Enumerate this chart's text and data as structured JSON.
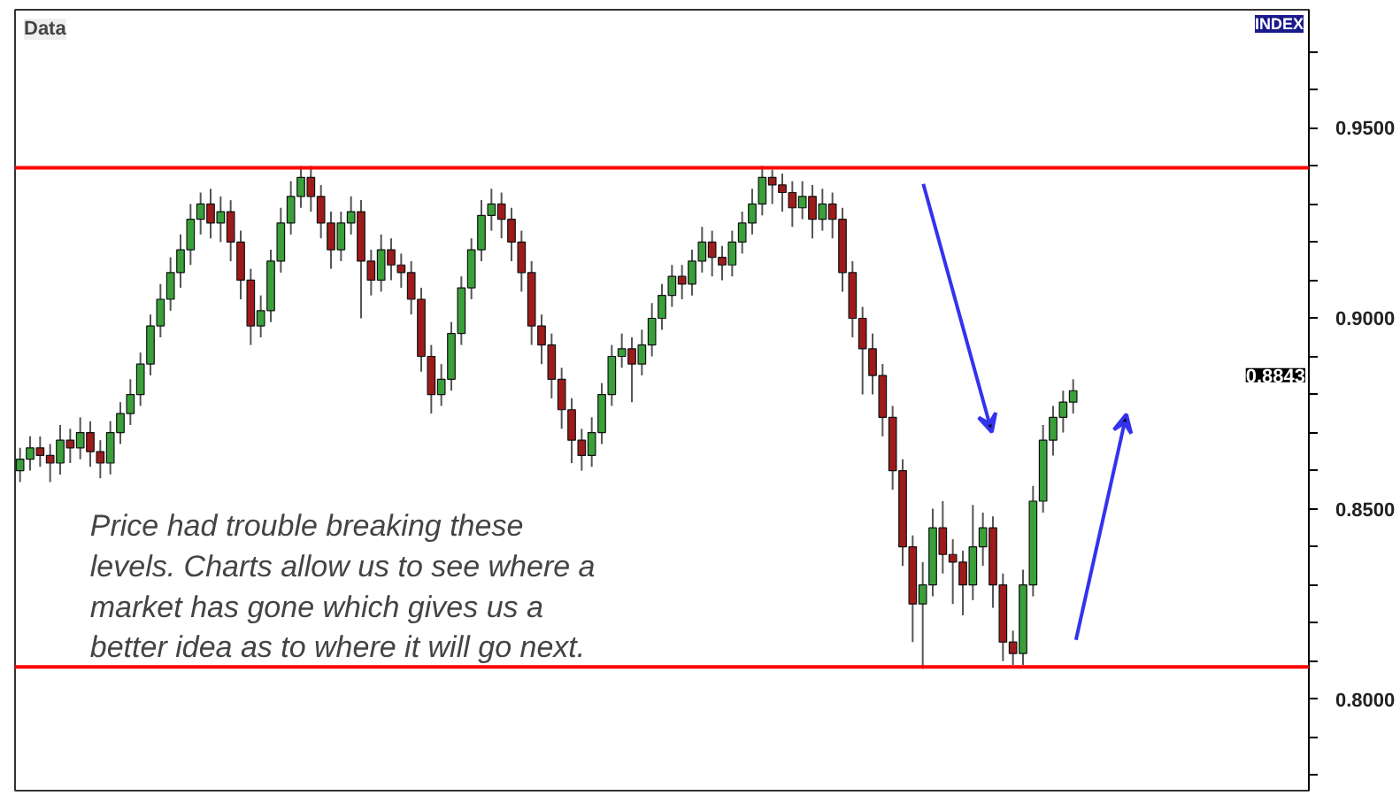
{
  "chart_data": {
    "type": "candlestick",
    "categories": [
      null,
      null,
      null,
      null,
      null,
      null,
      null,
      null,
      null,
      null,
      null,
      null,
      null,
      null,
      null,
      null,
      null,
      null,
      null,
      null,
      null,
      null,
      null,
      null,
      null,
      null,
      null,
      null,
      null,
      null,
      null,
      null,
      null,
      null,
      null,
      null,
      null,
      null,
      null,
      null,
      null,
      null,
      null,
      null,
      null,
      null,
      null,
      null,
      null,
      null,
      null,
      null,
      null,
      null,
      null,
      null,
      null,
      null,
      null,
      null,
      null,
      null,
      null,
      null,
      null,
      null,
      null,
      null,
      null,
      null,
      null,
      null,
      null,
      null,
      null,
      null,
      null,
      null,
      null,
      null,
      null,
      null,
      null,
      null,
      null,
      null,
      null,
      null,
      null,
      null,
      null,
      null,
      null,
      null,
      null,
      null,
      null,
      null,
      null,
      null,
      null,
      null,
      null,
      null,
      null,
      null,
      null,
      null,
      null,
      null,
      null,
      null,
      null,
      null,
      null,
      null,
      null,
      null,
      null,
      null,
      null,
      null,
      null,
      null,
      null,
      null,
      null,
      null,
      null
    ],
    "ohlc": [
      [
        0.86,
        0.866,
        0.857,
        0.863
      ],
      [
        0.863,
        0.869,
        0.86,
        0.866
      ],
      [
        0.866,
        0.869,
        0.861,
        0.864
      ],
      [
        0.864,
        0.867,
        0.857,
        0.862
      ],
      [
        0.862,
        0.872,
        0.859,
        0.868
      ],
      [
        0.868,
        0.871,
        0.862,
        0.866
      ],
      [
        0.866,
        0.874,
        0.863,
        0.87
      ],
      [
        0.87,
        0.873,
        0.861,
        0.865
      ],
      [
        0.865,
        0.868,
        0.858,
        0.862
      ],
      [
        0.862,
        0.873,
        0.859,
        0.87
      ],
      [
        0.87,
        0.878,
        0.867,
        0.875
      ],
      [
        0.875,
        0.884,
        0.872,
        0.88
      ],
      [
        0.88,
        0.891,
        0.877,
        0.888
      ],
      [
        0.888,
        0.901,
        0.885,
        0.898
      ],
      [
        0.898,
        0.909,
        0.895,
        0.905
      ],
      [
        0.905,
        0.916,
        0.902,
        0.912
      ],
      [
        0.912,
        0.922,
        0.908,
        0.918
      ],
      [
        0.918,
        0.93,
        0.914,
        0.926
      ],
      [
        0.926,
        0.933,
        0.922,
        0.93
      ],
      [
        0.93,
        0.934,
        0.921,
        0.925
      ],
      [
        0.925,
        0.932,
        0.92,
        0.928
      ],
      [
        0.928,
        0.931,
        0.915,
        0.92
      ],
      [
        0.92,
        0.923,
        0.905,
        0.91
      ],
      [
        0.91,
        0.913,
        0.893,
        0.898
      ],
      [
        0.898,
        0.906,
        0.895,
        0.902
      ],
      [
        0.902,
        0.918,
        0.899,
        0.915
      ],
      [
        0.915,
        0.929,
        0.912,
        0.925
      ],
      [
        0.925,
        0.936,
        0.922,
        0.932
      ],
      [
        0.932,
        0.94,
        0.929,
        0.937
      ],
      [
        0.937,
        0.94,
        0.928,
        0.932
      ],
      [
        0.932,
        0.935,
        0.921,
        0.925
      ],
      [
        0.925,
        0.928,
        0.913,
        0.918
      ],
      [
        0.918,
        0.928,
        0.915,
        0.925
      ],
      [
        0.925,
        0.932,
        0.922,
        0.928
      ],
      [
        0.928,
        0.931,
        0.9,
        0.915
      ],
      [
        0.915,
        0.918,
        0.906,
        0.91
      ],
      [
        0.91,
        0.922,
        0.907,
        0.918
      ],
      [
        0.918,
        0.921,
        0.91,
        0.914
      ],
      [
        0.914,
        0.917,
        0.908,
        0.912
      ],
      [
        0.912,
        0.915,
        0.901,
        0.905
      ],
      [
        0.905,
        0.908,
        0.886,
        0.89
      ],
      [
        0.89,
        0.893,
        0.875,
        0.88
      ],
      [
        0.88,
        0.888,
        0.877,
        0.884
      ],
      [
        0.884,
        0.899,
        0.881,
        0.896
      ],
      [
        0.896,
        0.911,
        0.893,
        0.908
      ],
      [
        0.908,
        0.921,
        0.905,
        0.918
      ],
      [
        0.918,
        0.931,
        0.915,
        0.927
      ],
      [
        0.927,
        0.934,
        0.923,
        0.93
      ],
      [
        0.93,
        0.933,
        0.921,
        0.926
      ],
      [
        0.926,
        0.929,
        0.915,
        0.92
      ],
      [
        0.92,
        0.923,
        0.907,
        0.912
      ],
      [
        0.912,
        0.915,
        0.893,
        0.898
      ],
      [
        0.898,
        0.901,
        0.888,
        0.893
      ],
      [
        0.893,
        0.896,
        0.879,
        0.884
      ],
      [
        0.884,
        0.887,
        0.871,
        0.876
      ],
      [
        0.876,
        0.879,
        0.862,
        0.868
      ],
      [
        0.868,
        0.871,
        0.86,
        0.864
      ],
      [
        0.864,
        0.874,
        0.861,
        0.87
      ],
      [
        0.87,
        0.883,
        0.867,
        0.88
      ],
      [
        0.88,
        0.893,
        0.877,
        0.89
      ],
      [
        0.89,
        0.896,
        0.887,
        0.892
      ],
      [
        0.892,
        0.895,
        0.878,
        0.888
      ],
      [
        0.888,
        0.897,
        0.885,
        0.893
      ],
      [
        0.893,
        0.904,
        0.89,
        0.9
      ],
      [
        0.9,
        0.909,
        0.897,
        0.906
      ],
      [
        0.906,
        0.914,
        0.903,
        0.911
      ],
      [
        0.911,
        0.914,
        0.905,
        0.909
      ],
      [
        0.909,
        0.918,
        0.906,
        0.915
      ],
      [
        0.915,
        0.924,
        0.912,
        0.92
      ],
      [
        0.92,
        0.923,
        0.911,
        0.916
      ],
      [
        0.916,
        0.919,
        0.91,
        0.914
      ],
      [
        0.914,
        0.923,
        0.911,
        0.92
      ],
      [
        0.92,
        0.928,
        0.917,
        0.925
      ],
      [
        0.925,
        0.934,
        0.922,
        0.93
      ],
      [
        0.93,
        0.94,
        0.927,
        0.937
      ],
      [
        0.937,
        0.939,
        0.93,
        0.935
      ],
      [
        0.935,
        0.938,
        0.928,
        0.933
      ],
      [
        0.933,
        0.936,
        0.924,
        0.929
      ],
      [
        0.929,
        0.936,
        0.926,
        0.932
      ],
      [
        0.932,
        0.935,
        0.921,
        0.926
      ],
      [
        0.926,
        0.934,
        0.923,
        0.93
      ],
      [
        0.93,
        0.933,
        0.921,
        0.926
      ],
      [
        0.926,
        0.929,
        0.907,
        0.912
      ],
      [
        0.912,
        0.915,
        0.895,
        0.9
      ],
      [
        0.9,
        0.903,
        0.88,
        0.892
      ],
      [
        0.892,
        0.896,
        0.88,
        0.885
      ],
      [
        0.885,
        0.888,
        0.869,
        0.874
      ],
      [
        0.874,
        0.877,
        0.855,
        0.86
      ],
      [
        0.86,
        0.863,
        0.835,
        0.84
      ],
      [
        0.84,
        0.843,
        0.815,
        0.825
      ],
      [
        0.825,
        0.836,
        0.808,
        0.83
      ],
      [
        0.83,
        0.85,
        0.827,
        0.845
      ],
      [
        0.845,
        0.852,
        0.833,
        0.838
      ],
      [
        0.838,
        0.842,
        0.825,
        0.836
      ],
      [
        0.836,
        0.839,
        0.822,
        0.83
      ],
      [
        0.83,
        0.851,
        0.826,
        0.84
      ],
      [
        0.84,
        0.849,
        0.835,
        0.845
      ],
      [
        0.845,
        0.848,
        0.824,
        0.83
      ],
      [
        0.83,
        0.833,
        0.81,
        0.815
      ],
      [
        0.815,
        0.818,
        0.809,
        0.812
      ],
      [
        0.812,
        0.834,
        0.809,
        0.83
      ],
      [
        0.83,
        0.856,
        0.827,
        0.852
      ],
      [
        0.852,
        0.872,
        0.849,
        0.868
      ],
      [
        0.868,
        0.877,
        0.864,
        0.874
      ],
      [
        0.874,
        0.881,
        0.87,
        0.878
      ],
      [
        0.878,
        0.884,
        0.875,
        0.881
      ],
      null,
      null,
      null,
      null,
      null,
      null,
      null,
      null,
      null,
      null,
      null,
      null,
      null,
      null,
      null,
      null,
      null,
      null,
      null,
      null,
      null,
      null,
      null
    ],
    "ylim": [
      0.776,
      0.981
    ],
    "yticks": [
      {
        "value": 0.78,
        "label": null
      },
      {
        "value": 0.79,
        "label": null
      },
      {
        "value": 0.8,
        "label": "0.8000"
      },
      {
        "value": 0.81,
        "label": null
      },
      {
        "value": 0.82,
        "label": null
      },
      {
        "value": 0.83,
        "label": null
      },
      {
        "value": 0.84,
        "label": null
      },
      {
        "value": 0.85,
        "label": "0.8500"
      },
      {
        "value": 0.86,
        "label": null
      },
      {
        "value": 0.87,
        "label": null
      },
      {
        "value": 0.88,
        "label": null
      },
      {
        "value": 0.89,
        "label": null
      },
      {
        "value": 0.9,
        "label": "0.9000"
      },
      {
        "value": 0.91,
        "label": null
      },
      {
        "value": 0.92,
        "label": null
      },
      {
        "value": 0.93,
        "label": null
      },
      {
        "value": 0.94,
        "label": null
      },
      {
        "value": 0.95,
        "label": "0.9500"
      },
      {
        "value": 0.96,
        "label": null
      },
      {
        "value": 0.97,
        "label": null
      }
    ],
    "tick_labels": "y",
    "grid": false,
    "ref_lines": [
      {
        "axis": "y",
        "value": 0.9395,
        "color": "#ff0000"
      },
      {
        "axis": "y",
        "value": 0.8085,
        "color": "#ff0000"
      }
    ],
    "annotations": [
      "Data",
      "INDEX",
      "0.8843",
      "Price had trouble breaking these\nlevels. Charts allow us to see where a\nmarket has gone which gives us a\nbetter idea as to where it will go next."
    ]
  }
}
